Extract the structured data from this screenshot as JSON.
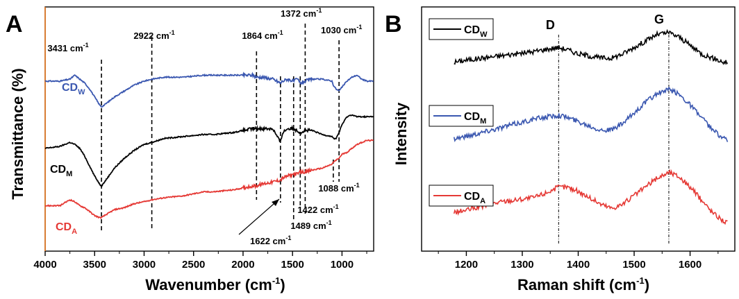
{
  "panels": {
    "A": {
      "letter": "A",
      "xlabel": "Wavenumber (cm",
      "xlabel_sup": "-1",
      "xlabel_end": ")",
      "ylabel": "Transmittance (%)",
      "annotations": [
        {
          "text": "3431 cm",
          "x": 3431
        },
        {
          "text": "2922 cm",
          "x": 2922
        },
        {
          "text": "1864 cm",
          "x": 1864
        },
        {
          "text": "1372 cm",
          "x": 1372
        },
        {
          "text": "1030 cm",
          "x": 1030
        },
        {
          "text": "1622 cm",
          "x": 1622
        },
        {
          "text": "1489 cm",
          "x": 1489
        },
        {
          "text": "1422 cm",
          "x": 1422
        },
        {
          "text": "1088 cm",
          "x": 1088
        }
      ],
      "series_labels": [
        {
          "main": "CD",
          "sub": "W",
          "color": "#3a57b0"
        },
        {
          "main": "CD",
          "sub": "M",
          "color": "#000000"
        },
        {
          "main": "CD",
          "sub": "A",
          "color": "#e53935"
        }
      ]
    },
    "B": {
      "letter": "B",
      "xlabel": "Raman shift (cm",
      "xlabel_sup": "-1",
      "xlabel_end": ")",
      "ylabel": "Intensity",
      "bands": [
        {
          "text": "D",
          "x": 1365
        },
        {
          "text": "G",
          "x": 1562
        }
      ],
      "legends": [
        {
          "main": "CD",
          "sub": "W",
          "color": "#000000"
        },
        {
          "main": "CD",
          "sub": "M",
          "color": "#3a57b0"
        },
        {
          "main": "CD",
          "sub": "A",
          "color": "#e53935"
        }
      ]
    }
  },
  "chart_data": [
    {
      "type": "line",
      "xlabel": "Wavenumber (cm-1)",
      "ylabel": "Transmittance (%)",
      "xlim": [
        4000,
        680
      ],
      "xticks": [
        4000,
        3500,
        3000,
        2500,
        2000,
        1500,
        1000
      ],
      "series": [
        {
          "name": "CDW",
          "color": "#3a57b0",
          "x": [
            4000,
            3850,
            3750,
            3700,
            3650,
            3600,
            3550,
            3500,
            3450,
            3431,
            3400,
            3300,
            3200,
            3100,
            3000,
            2922,
            2800,
            2600,
            2400,
            2350,
            2300,
            2100,
            2000,
            1900,
            1864,
            1800,
            1700,
            1622,
            1600,
            1550,
            1489,
            1450,
            1422,
            1372,
            1300,
            1200,
            1100,
            1088,
            1060,
            1030,
            1000,
            950,
            900,
            850,
            800,
            750,
            700
          ],
          "y": [
            88,
            88,
            89,
            91,
            89,
            87,
            84,
            80,
            76,
            75,
            76,
            80,
            83,
            86,
            88,
            89,
            90,
            90,
            91,
            91,
            91,
            91,
            91,
            91,
            90,
            90,
            89,
            87,
            88,
            89,
            88,
            89,
            87,
            88,
            89,
            89,
            88,
            86,
            84,
            83,
            85,
            88,
            90,
            91,
            89,
            88,
            88
          ]
        },
        {
          "name": "CDM",
          "color": "#000000",
          "x": [
            4000,
            3850,
            3750,
            3700,
            3650,
            3600,
            3550,
            3500,
            3450,
            3431,
            3400,
            3300,
            3200,
            3100,
            3000,
            2922,
            2800,
            2600,
            2400,
            2350,
            2300,
            2100,
            2000,
            1900,
            1864,
            1800,
            1700,
            1622,
            1600,
            1550,
            1489,
            1450,
            1422,
            1372,
            1300,
            1200,
            1100,
            1088,
            1060,
            1030,
            1000,
            950,
            900,
            850,
            800,
            750,
            700
          ],
          "y": [
            54,
            55,
            57,
            56,
            54,
            50,
            45,
            40,
            36,
            35,
            37,
            44,
            49,
            53,
            56,
            57,
            59,
            60,
            61,
            61,
            61,
            62,
            63,
            64,
            64,
            64,
            64,
            57,
            62,
            64,
            64,
            63,
            62,
            63,
            63,
            61,
            60,
            59,
            59,
            62,
            66,
            70,
            71,
            70,
            70,
            70,
            70
          ]
        },
        {
          "name": "CDA",
          "color": "#e53935",
          "x": [
            4000,
            3850,
            3750,
            3700,
            3650,
            3600,
            3550,
            3500,
            3450,
            3431,
            3400,
            3300,
            3200,
            3100,
            3000,
            2922,
            2800,
            2600,
            2400,
            2350,
            2300,
            2100,
            2000,
            1900,
            1864,
            1800,
            1700,
            1622,
            1600,
            1550,
            1489,
            1450,
            1422,
            1372,
            1300,
            1200,
            1100,
            1088,
            1060,
            1030,
            1000,
            950,
            900,
            850,
            800,
            750,
            700
          ],
          "y": [
            25,
            25,
            28,
            27,
            25,
            24,
            22,
            20,
            19,
            19,
            20,
            23,
            24,
            26,
            27,
            28,
            29,
            30,
            32,
            32,
            32,
            33,
            34,
            35,
            35,
            36,
            37,
            38,
            39,
            40,
            41,
            41,
            42,
            42,
            43,
            44,
            46,
            47,
            48,
            49,
            51,
            52,
            54,
            56,
            57,
            58,
            58
          ]
        }
      ]
    },
    {
      "type": "line",
      "xlabel": "Raman shift (cm-1)",
      "ylabel": "Intensity",
      "xlim": [
        1120,
        1680
      ],
      "xticks": [
        1200,
        1300,
        1400,
        1500,
        1600
      ],
      "series": [
        {
          "name": "CDW",
          "color": "#000000",
          "x": [
            1178,
            1200,
            1230,
            1260,
            1290,
            1320,
            1340,
            1365,
            1380,
            1400,
            1420,
            1440,
            1460,
            1480,
            1500,
            1520,
            1540,
            1562,
            1580,
            1600,
            1620,
            1640,
            1660,
            1668
          ],
          "y": [
            86,
            87,
            88,
            89,
            90,
            91,
            92,
            93,
            92,
            90,
            89,
            88,
            88,
            90,
            93,
            96,
            99,
            100,
            98,
            94,
            90,
            88,
            86,
            86
          ]
        },
        {
          "name": "CDM",
          "color": "#3a57b0",
          "x": [
            1178,
            1200,
            1230,
            1260,
            1290,
            1320,
            1340,
            1365,
            1380,
            1400,
            1420,
            1440,
            1460,
            1480,
            1500,
            1520,
            1540,
            1562,
            1580,
            1600,
            1620,
            1640,
            1660,
            1668
          ],
          "y": [
            50,
            51,
            53,
            55,
            57,
            59,
            60,
            61,
            60,
            58,
            56,
            54,
            54,
            57,
            62,
            67,
            71,
            73,
            71,
            66,
            60,
            54,
            50,
            49
          ]
        },
        {
          "name": "CDA",
          "color": "#e53935",
          "x": [
            1178,
            1200,
            1230,
            1260,
            1290,
            1320,
            1340,
            1365,
            1380,
            1400,
            1420,
            1440,
            1460,
            1480,
            1500,
            1520,
            1540,
            1562,
            1580,
            1600,
            1620,
            1640,
            1660,
            1668
          ],
          "y": [
            15,
            16,
            18,
            20,
            21,
            22,
            24,
            27,
            27,
            25,
            22,
            19,
            17,
            19,
            23,
            27,
            31,
            34,
            32,
            27,
            21,
            15,
            11,
            10
          ]
        }
      ]
    }
  ]
}
